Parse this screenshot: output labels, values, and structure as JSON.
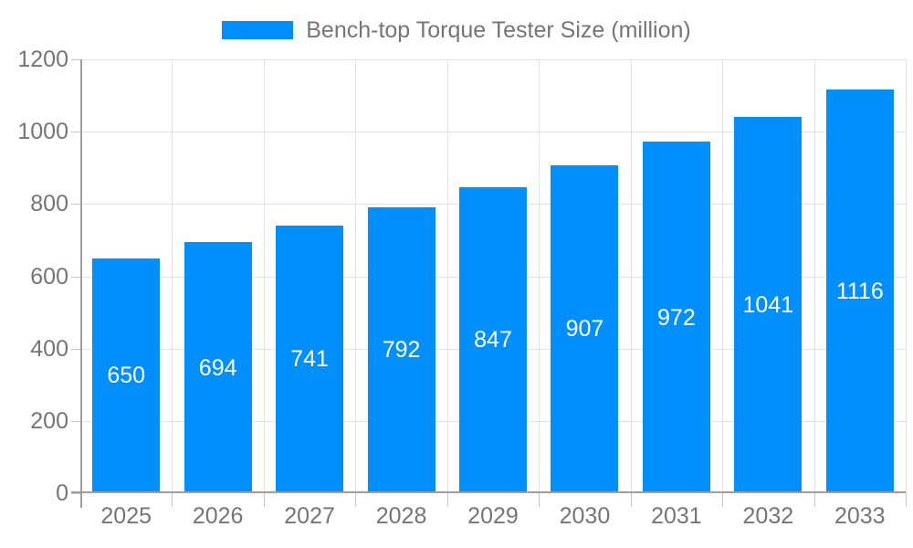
{
  "chart_data": {
    "type": "bar",
    "title": "Bench-top Torque Tester Size (million)",
    "categories": [
      "2025",
      "2026",
      "2027",
      "2028",
      "2029",
      "2030",
      "2031",
      "2032",
      "2033"
    ],
    "values": [
      650,
      694,
      741,
      792,
      847,
      907,
      972,
      1041,
      1116
    ],
    "xlabel": "",
    "ylabel": "",
    "ylim": [
      0,
      1200
    ],
    "yticks": [
      0,
      200,
      400,
      600,
      800,
      1000,
      1200
    ],
    "grid": true,
    "legend_position": "top",
    "colors": {
      "bar": "#008FFB",
      "value_label": "#FFFFFF",
      "axis_text": "#757575",
      "grid_line": "#E2E2E2",
      "axis_line": "#9E9E9E",
      "tick": "#C6C6C6",
      "background": "#FFFFFF"
    }
  }
}
